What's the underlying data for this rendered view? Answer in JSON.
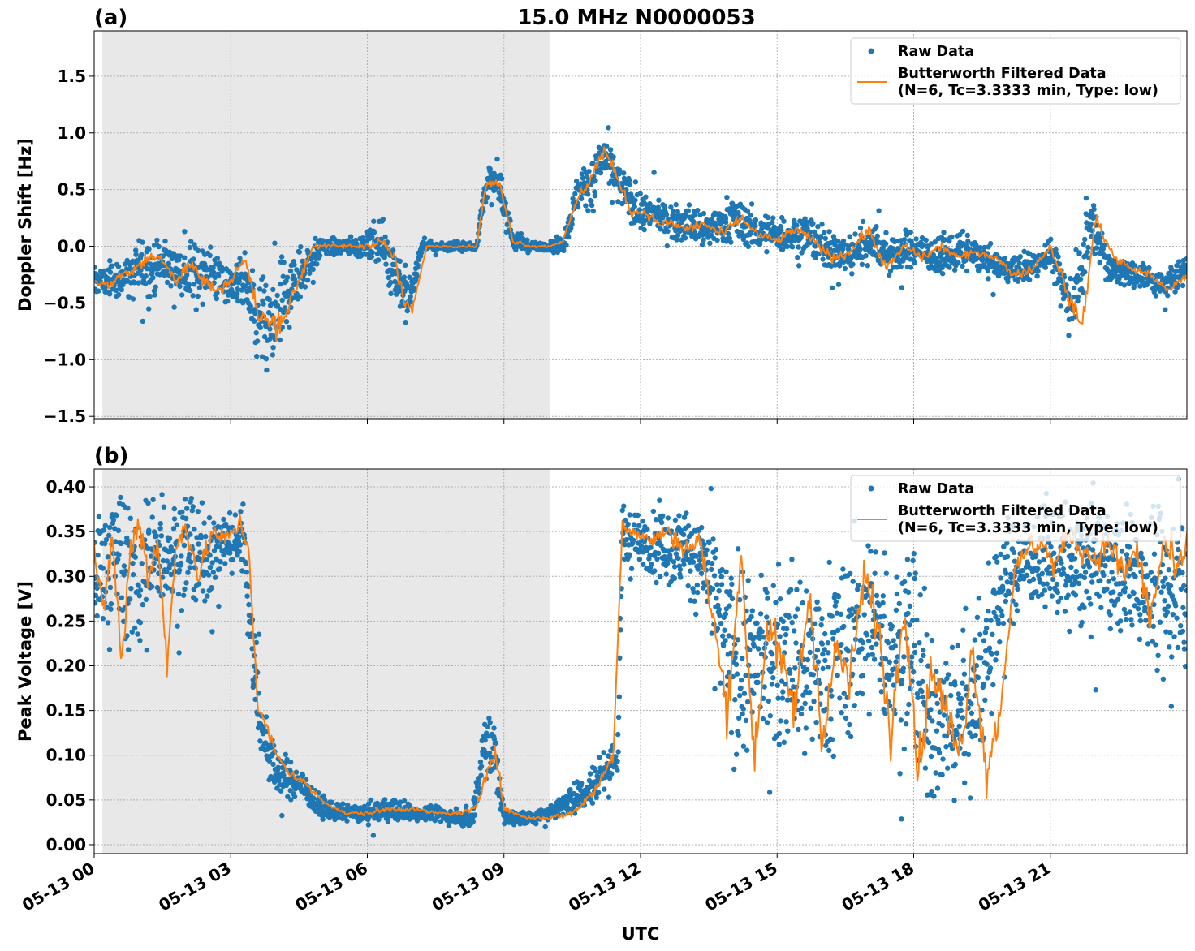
{
  "chart_data": [
    {
      "type": "scatter",
      "panel_label": "(a)",
      "title": "15.0 MHz N0000053",
      "xlabel": "",
      "ylabel": "Doppler Shift [Hz]",
      "x_unit": "hours UTC on 05-13",
      "xlim": [
        0,
        24
      ],
      "ylim": [
        -1.52,
        1.9
      ],
      "yticks": [
        -1.5,
        -1.0,
        -0.5,
        0.0,
        0.5,
        1.0,
        1.5
      ],
      "ytick_labels": [
        "−1.5",
        "−1.0",
        "−0.5",
        "0.0",
        "0.5",
        "1.0",
        "1.5"
      ],
      "grid": true,
      "shaded_interval_hours": [
        0.18,
        10.0
      ],
      "legend": {
        "placement": "top-right",
        "entries": [
          "Raw Data",
          "Butterworth Filtered Data",
          "(N=6, Tc=3.3333 min, Type: low)"
        ]
      },
      "series": [
        {
          "name": "Raw Data",
          "style": "points",
          "color": "#1f77b4",
          "x": [
            0,
            0.5,
            1,
            1.5,
            2,
            2.5,
            3,
            3.3,
            3.6,
            4,
            4.3,
            4.6,
            5,
            5.5,
            6,
            6.3,
            6.6,
            6.9,
            7.2,
            7.6,
            8,
            8.4,
            8.6,
            8.9,
            9.2,
            9.6,
            10,
            10.3,
            10.6,
            11,
            11.2,
            11.5,
            12,
            12.5,
            13,
            13.5,
            14,
            14.5,
            15,
            15.5,
            16,
            16.5,
            17,
            17.5,
            18,
            18.5,
            19,
            19.5,
            20,
            20.5,
            21,
            21.2,
            21.5,
            21.9,
            22.3,
            22.7,
            23.1,
            23.5,
            24
          ],
          "y_center": [
            -0.3,
            -0.3,
            -0.2,
            -0.15,
            -0.25,
            -0.2,
            -0.35,
            -0.3,
            -0.7,
            -0.7,
            -0.4,
            -0.2,
            0.0,
            0.0,
            0.0,
            0.05,
            -0.2,
            -0.5,
            0.0,
            0.0,
            0.0,
            0.0,
            0.55,
            0.55,
            0.05,
            0.0,
            0.0,
            0.0,
            0.45,
            0.6,
            0.8,
            0.55,
            0.3,
            0.25,
            0.2,
            0.15,
            0.25,
            0.15,
            0.1,
            0.1,
            0.0,
            -0.1,
            0.05,
            -0.1,
            0.0,
            -0.1,
            -0.05,
            -0.1,
            -0.2,
            -0.2,
            -0.05,
            -0.3,
            -0.5,
            0.25,
            -0.2,
            -0.25,
            -0.25,
            -0.35,
            -0.2
          ],
          "y_spread": [
            0.15,
            0.2,
            0.35,
            0.25,
            0.35,
            0.35,
            0.2,
            0.3,
            0.5,
            0.6,
            0.4,
            0.3,
            0.1,
            0.1,
            0.15,
            0.25,
            0.35,
            0.3,
            0.05,
            0.05,
            0.05,
            0.05,
            0.2,
            0.2,
            0.15,
            0.05,
            0.05,
            0.1,
            0.2,
            0.35,
            0.3,
            0.25,
            0.2,
            0.2,
            0.2,
            0.2,
            0.25,
            0.2,
            0.2,
            0.2,
            0.2,
            0.25,
            0.25,
            0.2,
            0.2,
            0.2,
            0.2,
            0.15,
            0.15,
            0.2,
            0.15,
            0.25,
            0.35,
            0.4,
            0.2,
            0.15,
            0.15,
            0.15,
            0.2
          ]
        },
        {
          "name": "Butterworth Filtered Data",
          "style": "line",
          "color": "#ff7f0e",
          "x": [
            0,
            0.3,
            0.6,
            0.9,
            1.2,
            1.5,
            1.8,
            2.1,
            2.4,
            2.7,
            3.0,
            3.3,
            3.6,
            3.9,
            4.2,
            4.5,
            4.8,
            5.1,
            5.5,
            5.9,
            6.3,
            6.6,
            6.8,
            7.0,
            7.3,
            7.7,
            8.1,
            8.4,
            8.6,
            8.9,
            9.2,
            9.6,
            10,
            10.3,
            10.6,
            10.9,
            11.2,
            11.5,
            11.8,
            12.1,
            12.4,
            12.7,
            13,
            13.4,
            13.8,
            14.2,
            14.6,
            15,
            15.4,
            15.8,
            16.2,
            16.6,
            17,
            17.4,
            17.8,
            18.2,
            18.6,
            19,
            19.4,
            19.8,
            20.2,
            20.6,
            21,
            21.2,
            21.4,
            21.7,
            22,
            22.4,
            22.8,
            23.2,
            23.6,
            24
          ],
          "y": [
            -0.3,
            -0.35,
            -0.25,
            -0.2,
            -0.1,
            -0.1,
            -0.3,
            -0.15,
            -0.3,
            -0.4,
            -0.3,
            -0.1,
            -0.6,
            -0.7,
            -0.6,
            -0.3,
            0.0,
            0.0,
            0.0,
            0.0,
            0.05,
            -0.1,
            -0.5,
            -0.55,
            0.0,
            0.0,
            0.0,
            0.0,
            0.55,
            0.55,
            0.05,
            0.0,
            0.0,
            0.05,
            0.4,
            0.6,
            0.85,
            0.6,
            0.3,
            0.3,
            0.2,
            0.2,
            0.15,
            0.2,
            0.1,
            0.25,
            0.1,
            0.05,
            0.15,
            0.05,
            -0.1,
            -0.05,
            0.15,
            -0.2,
            0.0,
            -0.1,
            0.0,
            -0.1,
            -0.05,
            -0.1,
            -0.25,
            -0.2,
            0.0,
            -0.2,
            -0.45,
            -0.7,
            0.25,
            -0.1,
            -0.2,
            -0.25,
            -0.4,
            -0.25
          ]
        }
      ]
    },
    {
      "type": "scatter",
      "panel_label": "(b)",
      "title": "",
      "xlabel": "UTC",
      "ylabel": "Peak Voltage [V]",
      "x_unit": "hours UTC on 05-13",
      "xlim": [
        0,
        24
      ],
      "ylim": [
        -0.01,
        0.42
      ],
      "xticks": [
        0,
        3,
        6,
        9,
        12,
        15,
        18,
        21
      ],
      "xtick_labels": [
        "05-13 00",
        "05-13 03",
        "05-13 06",
        "05-13 09",
        "05-13 12",
        "05-13 15",
        "05-13 18",
        "05-13 21"
      ],
      "yticks": [
        0.0,
        0.05,
        0.1,
        0.15,
        0.2,
        0.25,
        0.3,
        0.35,
        0.4
      ],
      "ytick_labels": [
        "0.00",
        "0.05",
        "0.10",
        "0.15",
        "0.20",
        "0.25",
        "0.30",
        "0.35",
        "0.40"
      ],
      "grid": true,
      "shaded_interval_hours": [
        0.18,
        10.0
      ],
      "legend": {
        "placement": "top-right",
        "entries": [
          "Raw Data",
          "Butterworth Filtered Data",
          "(N=6, Tc=3.3333 min, Type: low)"
        ]
      },
      "series": [
        {
          "name": "Raw Data",
          "style": "points",
          "color": "#1f77b4",
          "x": [
            0,
            0.5,
            1,
            1.5,
            2,
            2.5,
            3,
            3.3,
            3.5,
            3.7,
            4,
            4.5,
            5,
            5.5,
            6,
            6.5,
            7,
            7.5,
            8,
            8.3,
            8.6,
            8.8,
            9,
            9.5,
            10,
            10.5,
            11,
            11.5,
            11.6,
            12,
            12.5,
            13,
            13.5,
            14,
            14.5,
            15,
            15.5,
            16,
            16.5,
            17,
            17.5,
            18,
            18.5,
            19,
            19.5,
            20,
            20.5,
            21,
            21.5,
            22,
            22.5,
            23,
            23.5,
            24
          ],
          "y_center": [
            0.3,
            0.32,
            0.3,
            0.33,
            0.32,
            0.32,
            0.34,
            0.34,
            0.2,
            0.12,
            0.08,
            0.07,
            0.04,
            0.035,
            0.035,
            0.04,
            0.035,
            0.035,
            0.03,
            0.03,
            0.12,
            0.1,
            0.03,
            0.03,
            0.035,
            0.05,
            0.07,
            0.1,
            0.34,
            0.34,
            0.33,
            0.33,
            0.3,
            0.2,
            0.2,
            0.22,
            0.2,
            0.2,
            0.22,
            0.25,
            0.22,
            0.2,
            0.12,
            0.15,
            0.18,
            0.3,
            0.32,
            0.32,
            0.3,
            0.32,
            0.3,
            0.3,
            0.28,
            0.3
          ],
          "y_spread": [
            0.1,
            0.1,
            0.12,
            0.08,
            0.08,
            0.06,
            0.05,
            0.05,
            0.08,
            0.04,
            0.03,
            0.025,
            0.015,
            0.01,
            0.012,
            0.02,
            0.012,
            0.01,
            0.01,
            0.015,
            0.06,
            0.06,
            0.01,
            0.01,
            0.01,
            0.02,
            0.03,
            0.04,
            0.05,
            0.04,
            0.05,
            0.06,
            0.09,
            0.13,
            0.13,
            0.13,
            0.13,
            0.13,
            0.13,
            0.12,
            0.13,
            0.14,
            0.12,
            0.13,
            0.13,
            0.07,
            0.07,
            0.07,
            0.08,
            0.08,
            0.1,
            0.1,
            0.12,
            0.12
          ]
        },
        {
          "name": "Butterworth Filtered Data",
          "style": "line",
          "color": "#ff7f0e",
          "x": [
            0,
            0.2,
            0.4,
            0.6,
            0.8,
            1.0,
            1.2,
            1.4,
            1.6,
            1.8,
            2.0,
            2.3,
            2.6,
            2.9,
            3.2,
            3.4,
            3.6,
            3.8,
            4.0,
            4.3,
            4.6,
            5.0,
            5.5,
            6.0,
            6.5,
            7.0,
            7.5,
            8.0,
            8.4,
            8.6,
            8.8,
            9.0,
            9.5,
            10,
            10.5,
            11,
            11.4,
            11.6,
            11.8,
            12.2,
            12.6,
            13,
            13.3,
            13.6,
            13.9,
            14.2,
            14.5,
            14.8,
            15.1,
            15.4,
            15.7,
            16,
            16.3,
            16.6,
            16.9,
            17.2,
            17.5,
            17.8,
            18.1,
            18.4,
            18.7,
            19,
            19.3,
            19.6,
            19.9,
            20.2,
            20.5,
            20.8,
            21.1,
            21.4,
            21.7,
            22,
            22.3,
            22.6,
            22.9,
            23.2,
            23.5,
            23.8,
            24
          ],
          "y": [
            0.33,
            0.25,
            0.35,
            0.2,
            0.33,
            0.36,
            0.3,
            0.34,
            0.2,
            0.33,
            0.36,
            0.3,
            0.35,
            0.34,
            0.36,
            0.33,
            0.15,
            0.13,
            0.1,
            0.08,
            0.07,
            0.05,
            0.035,
            0.035,
            0.04,
            0.04,
            0.035,
            0.035,
            0.04,
            0.08,
            0.11,
            0.04,
            0.03,
            0.03,
            0.035,
            0.06,
            0.1,
            0.36,
            0.35,
            0.34,
            0.35,
            0.33,
            0.34,
            0.25,
            0.15,
            0.32,
            0.1,
            0.25,
            0.2,
            0.15,
            0.28,
            0.12,
            0.22,
            0.18,
            0.3,
            0.25,
            0.12,
            0.28,
            0.08,
            0.2,
            0.15,
            0.1,
            0.22,
            0.08,
            0.15,
            0.3,
            0.33,
            0.34,
            0.31,
            0.35,
            0.33,
            0.32,
            0.34,
            0.3,
            0.33,
            0.25,
            0.34,
            0.3,
            0.33
          ]
        }
      ]
    }
  ]
}
